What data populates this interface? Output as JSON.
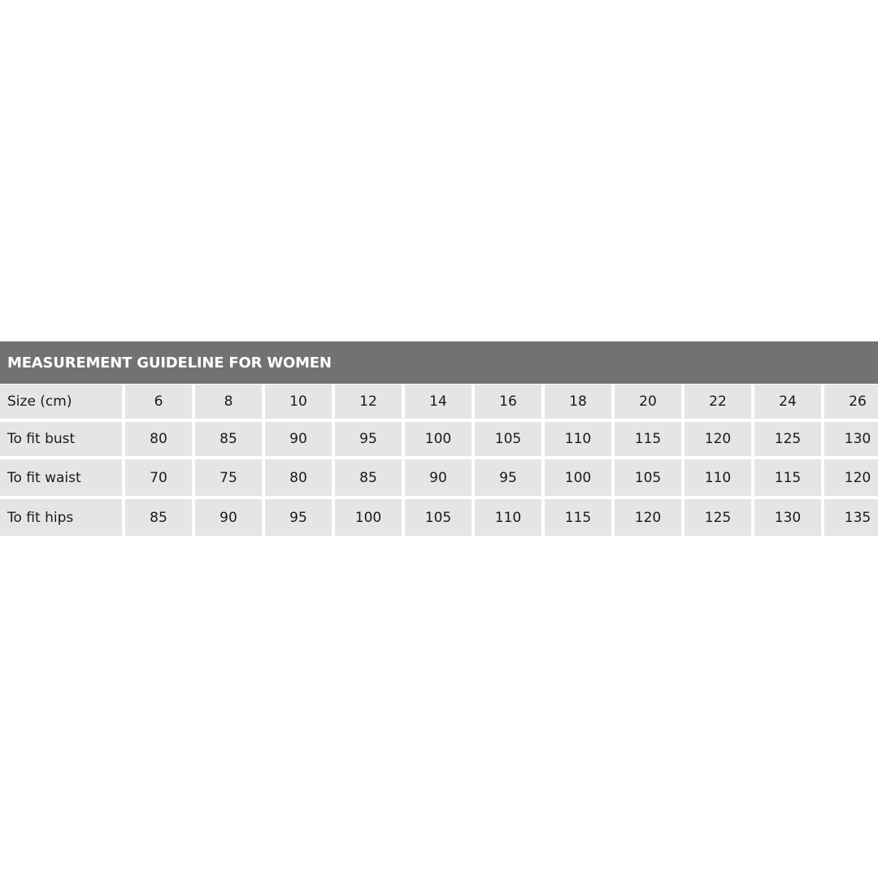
{
  "title": "MEASUREMENT GUIDELINE FOR WOMEN",
  "rows": [
    {
      "label": "Size (cm)",
      "values": [
        "6",
        "8",
        "10",
        "12",
        "14",
        "16",
        "18",
        "20",
        "22",
        "24",
        "26"
      ]
    },
    {
      "label": "To fit bust",
      "values": [
        "80",
        "85",
        "90",
        "95",
        "100",
        "105",
        "110",
        "115",
        "120",
        "125",
        "130"
      ]
    },
    {
      "label": "To fit waist",
      "values": [
        "70",
        "75",
        "80",
        "85",
        "90",
        "95",
        "100",
        "105",
        "110",
        "115",
        "120"
      ]
    },
    {
      "label": "To fit hips",
      "values": [
        "85",
        "90",
        "95",
        "100",
        "105",
        "110",
        "115",
        "120",
        "125",
        "130",
        "135"
      ]
    }
  ],
  "colors": {
    "header_bg": "#727272",
    "cell_bg": "#e5e5e7",
    "header_text": "#ffffff"
  }
}
